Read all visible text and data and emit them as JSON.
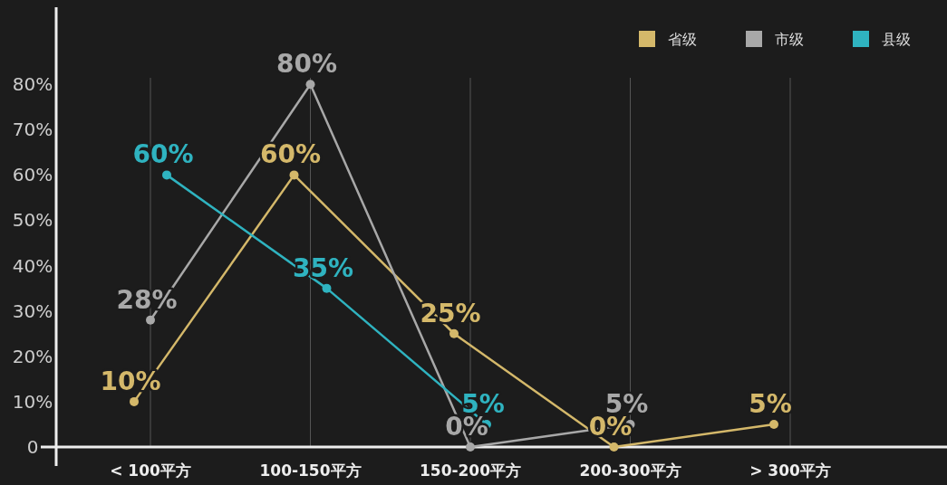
{
  "chart_data": {
    "type": "line",
    "categories": [
      "< 100平方",
      "100-150平方",
      "150-200平方",
      "200-300平方",
      "> 300平方"
    ],
    "series": [
      {
        "name": "省级",
        "color": "#d4b86a",
        "values": [
          10,
          60,
          25,
          0,
          5
        ],
        "value_labels": [
          "10%",
          "60%",
          "25%",
          "0%",
          "5%"
        ]
      },
      {
        "name": "市级",
        "color": "#a8a8a8",
        "values": [
          28,
          80,
          0,
          5,
          null
        ],
        "value_labels": [
          "28%",
          "80%",
          "0%",
          "5%",
          null
        ]
      },
      {
        "name": "县级",
        "color": "#2fb3c0",
        "values": [
          60,
          35,
          5,
          null,
          null
        ],
        "value_labels": [
          "60%",
          "35%",
          "5%",
          null,
          null
        ]
      }
    ],
    "ylim": [
      0,
      97
    ],
    "yticks": [
      {
        "value": 0,
        "label": "0"
      },
      {
        "value": 10,
        "label": "10%"
      },
      {
        "value": 20,
        "label": "20%"
      },
      {
        "value": 30,
        "label": "30%"
      },
      {
        "value": 40,
        "label": "40%"
      },
      {
        "value": 50,
        "label": "50%"
      },
      {
        "value": 60,
        "label": "60%"
      },
      {
        "value": 70,
        "label": "70%"
      },
      {
        "value": 80,
        "label": "80%"
      }
    ],
    "grid": "x",
    "legend": "top right",
    "marker": "circle",
    "line_style": "solid"
  }
}
